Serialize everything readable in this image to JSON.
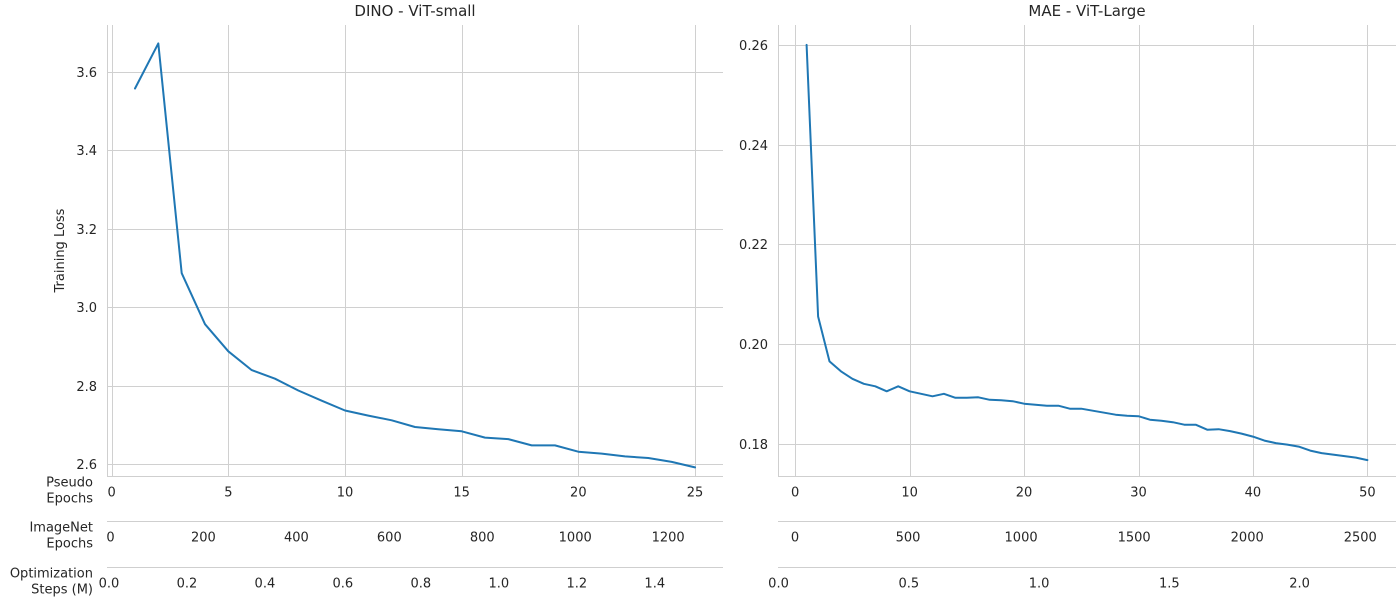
{
  "chart_data": [
    {
      "type": "line",
      "title": "DINO - ViT-small",
      "ylabel": "Training Loss",
      "xlabel": "",
      "ylim": [
        2.57,
        3.72
      ],
      "xlim": [
        -0.2,
        26.2
      ],
      "yticks": [
        2.6,
        2.8,
        3.0,
        3.2,
        3.4,
        3.6
      ],
      "grid": true,
      "x_axes": [
        {
          "label": "Pseudo\nEpochs",
          "ticks": [
            0,
            5,
            10,
            15,
            20,
            25
          ],
          "tick_labels": [
            "0",
            "5",
            "10",
            "15",
            "20",
            "25"
          ],
          "range": [
            -0.2,
            26.2
          ]
        },
        {
          "label": "ImageNet\nEpochs",
          "ticks": [
            0,
            200,
            400,
            600,
            800,
            1000,
            1200
          ],
          "tick_labels": [
            "0",
            "200",
            "400",
            "600",
            "800",
            "1000",
            "1200"
          ],
          "range": [
            -7.5,
            1318
          ]
        },
        {
          "label": "Optimization\nSteps (M)",
          "ticks": [
            0.0,
            0.2,
            0.4,
            0.6,
            0.8,
            1.0,
            1.2,
            1.4
          ],
          "tick_labels": [
            "0.0",
            "0.2",
            "0.4",
            "0.6",
            "0.8",
            "1.0",
            "1.2",
            "1.4"
          ],
          "range": [
            -0.005,
            1.575
          ]
        }
      ],
      "series": [
        {
          "color": "#1f77b4",
          "x": [
            1,
            2,
            3,
            4,
            5,
            6,
            7,
            8,
            9,
            10,
            11,
            12,
            13,
            14,
            15,
            16,
            17,
            18,
            19,
            20,
            21,
            22,
            23,
            24,
            25
          ],
          "y": [
            3.558,
            3.673,
            3.087,
            2.957,
            2.888,
            2.84,
            2.818,
            2.788,
            2.762,
            2.737,
            2.724,
            2.712,
            2.695,
            2.689,
            2.684,
            2.668,
            2.664,
            2.648,
            2.648,
            2.632,
            2.627,
            2.62,
            2.616,
            2.606,
            2.592
          ]
        }
      ]
    },
    {
      "type": "line",
      "title": "MAE - ViT-Large",
      "ylabel": "",
      "xlabel": "",
      "ylim": [
        0.1735,
        0.264
      ],
      "xlim": [
        -1.5,
        52.5
      ],
      "yticks": [
        0.18,
        0.2,
        0.22,
        0.24,
        0.26
      ],
      "grid": true,
      "x_axes": [
        {
          "label": "",
          "ticks": [
            0,
            10,
            20,
            30,
            40,
            50
          ],
          "tick_labels": [
            "0",
            "10",
            "20",
            "30",
            "40",
            "50"
          ],
          "range": [
            -1.5,
            52.5
          ]
        },
        {
          "label": "",
          "ticks": [
            0,
            500,
            1000,
            1500,
            2000,
            2500
          ],
          "tick_labels": [
            "0",
            "500",
            "1000",
            "1500",
            "2000",
            "2500"
          ],
          "range": [
            -75,
            2658
          ]
        },
        {
          "label": "",
          "ticks": [
            0.0,
            0.5,
            1.0,
            1.5,
            2.0
          ],
          "tick_labels": [
            "0.0",
            "0.5",
            "1.0",
            "1.5",
            "2.0"
          ],
          "range": [
            -0.002,
            2.37
          ]
        }
      ],
      "series": [
        {
          "color": "#1f77b4",
          "x": [
            1,
            2,
            3,
            4,
            5,
            6,
            7,
            8,
            9,
            10,
            11,
            12,
            13,
            14,
            15,
            16,
            17,
            18,
            19,
            20,
            21,
            22,
            23,
            24,
            25,
            26,
            27,
            28,
            29,
            30,
            31,
            32,
            33,
            34,
            35,
            36,
            37,
            38,
            39,
            40,
            41,
            42,
            43,
            44,
            45,
            46,
            47,
            48,
            49,
            50
          ],
          "y": [
            0.26,
            0.2055,
            0.1965,
            0.1945,
            0.193,
            0.192,
            0.1915,
            0.1905,
            0.1915,
            0.1905,
            0.19,
            0.1895,
            0.19,
            0.1892,
            0.1892,
            0.1893,
            0.1888,
            0.1887,
            0.1885,
            0.188,
            0.1878,
            0.1876,
            0.1876,
            0.187,
            0.187,
            0.1866,
            0.1862,
            0.1858,
            0.1856,
            0.1855,
            0.1848,
            0.1846,
            0.1843,
            0.1838,
            0.1838,
            0.1828,
            0.1829,
            0.1825,
            0.182,
            0.1814,
            0.1806,
            0.1801,
            0.1798,
            0.1794,
            0.1786,
            0.1781,
            0.1778,
            0.1775,
            0.1772,
            0.1767
          ]
        }
      ]
    }
  ]
}
